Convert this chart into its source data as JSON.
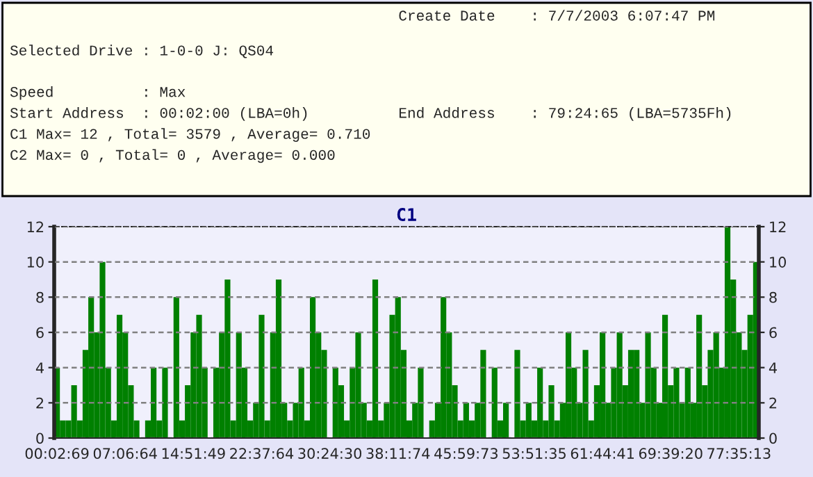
{
  "chart_data": {
    "type": "bar",
    "title": "C1",
    "annotations": [
      "Create Date    : 7/7/2003 6:07:47 PM",
      "Selected Drive : 1-0-0 J: QS04",
      "Speed          : Max",
      "Start Address  : 00:02:00 (LBA=0h)",
      "End Address    : 79:24:65 (LBA=5735Fh)",
      "C1 Max= 12 , Total= 3579 , Average= 0.710",
      "C2 Max= 0 , Total= 0 , Average= 0.000"
    ],
    "categories": [
      "00:02:69",
      null,
      null,
      null,
      null,
      null,
      null,
      null,
      null,
      null,
      null,
      null,
      "07:06:64",
      null,
      null,
      null,
      null,
      null,
      null,
      null,
      null,
      null,
      null,
      null,
      "14:51:49",
      null,
      null,
      null,
      null,
      null,
      null,
      null,
      null,
      null,
      null,
      null,
      "22:37:64",
      null,
      null,
      null,
      null,
      null,
      null,
      null,
      null,
      null,
      null,
      null,
      "30:24:30",
      null,
      null,
      null,
      null,
      null,
      null,
      null,
      null,
      null,
      null,
      null,
      "38:11:74",
      null,
      null,
      null,
      null,
      null,
      null,
      null,
      null,
      null,
      null,
      null,
      "45:59:73",
      null,
      null,
      null,
      null,
      null,
      null,
      null,
      null,
      null,
      null,
      null,
      "53:51:35",
      null,
      null,
      null,
      null,
      null,
      null,
      null,
      null,
      null,
      null,
      null,
      "61:44:41",
      null,
      null,
      null,
      null,
      null,
      null,
      null,
      null,
      null,
      null,
      null,
      "69:39:20",
      null,
      null,
      null,
      null,
      null,
      null,
      null,
      null,
      null,
      null,
      null,
      "77:35:13",
      null,
      null,
      null
    ],
    "series": [
      {
        "color": "#008000",
        "values": [
          4,
          1,
          1,
          3,
          1,
          5,
          8,
          6,
          10,
          4,
          1,
          7,
          6,
          3,
          1,
          0,
          1,
          4,
          1,
          4,
          0,
          8,
          1,
          3,
          6,
          7,
          4,
          0,
          4,
          6,
          9,
          1,
          6,
          4,
          1,
          2,
          7,
          1,
          6,
          9,
          2,
          1,
          2,
          4,
          1,
          8,
          6,
          5,
          0,
          4,
          3,
          1,
          4,
          6,
          2,
          1,
          9,
          1,
          2,
          7,
          8,
          5,
          1,
          2,
          4,
          0,
          1,
          2,
          8,
          6,
          3,
          1,
          2,
          1,
          2,
          5,
          0,
          4,
          1,
          2,
          0,
          5,
          1,
          2,
          1,
          4,
          1,
          3,
          1,
          2,
          6,
          4,
          2,
          5,
          1,
          3,
          6,
          2,
          4,
          6,
          3,
          5,
          5,
          2,
          6,
          4,
          2,
          7,
          3,
          4,
          2,
          4,
          2,
          7,
          3,
          5,
          6,
          4,
          12,
          9,
          6,
          5,
          7,
          10
        ]
      }
    ],
    "ylim": [
      0,
      12
    ],
    "yticks": [
      0,
      2,
      4,
      6,
      8,
      10,
      12
    ],
    "y2lim": [
      0,
      12
    ],
    "y2ticks": [
      0,
      2,
      4,
      6,
      8,
      10,
      12
    ],
    "grid": "y"
  }
}
